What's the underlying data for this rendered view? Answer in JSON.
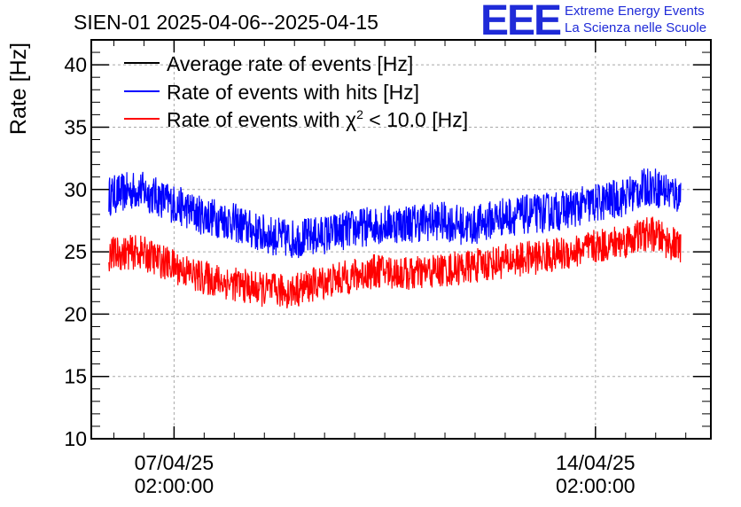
{
  "chart_data": {
    "type": "line",
    "title": "SIEN-01 2025-04-06--2025-04-15",
    "ylabel": "Rate [Hz]",
    "xlabel": "",
    "ylim": [
      10,
      42
    ],
    "yticks": [
      10,
      15,
      20,
      25,
      30,
      35,
      40
    ],
    "xlim": [
      "2025-04-05 17:00",
      "2025-04-16 00:00"
    ],
    "xticks": [
      {
        "date": "2025-04-07 02:00",
        "label_line1": "07/04/25",
        "label_line2": "02:00:00"
      },
      {
        "date": "2025-04-14 02:00",
        "label_line1": "14/04/25",
        "label_line2": "02:00:00"
      }
    ],
    "grid": true,
    "legend_placement": "top-left",
    "legend": [
      {
        "label": "Average rate of events [Hz]",
        "color": "#000000"
      },
      {
        "label": "Rate of events with hits [Hz]",
        "color": "#0000ff"
      },
      {
        "label_prefix": "Rate of events with ",
        "label_symbol": "χ",
        "label_sup": "2",
        "label_suffix": " < 10.0 [Hz]",
        "color": "#ff0000"
      }
    ],
    "series": [
      {
        "name": "Rate of events with hits [Hz]",
        "color": "#0000ff",
        "band": 1.6,
        "x": [
          "2025-04-06 00:00",
          "2025-04-06 12:00",
          "2025-04-07 00:00",
          "2025-04-07 12:00",
          "2025-04-08 00:00",
          "2025-04-08 12:00",
          "2025-04-09 00:00",
          "2025-04-09 12:00",
          "2025-04-10 00:00",
          "2025-04-10 12:00",
          "2025-04-11 00:00",
          "2025-04-11 12:00",
          "2025-04-12 00:00",
          "2025-04-12 12:00",
          "2025-04-13 00:00",
          "2025-04-13 12:00",
          "2025-04-14 00:00",
          "2025-04-14 12:00",
          "2025-04-15 00:00",
          "2025-04-15 12:00"
        ],
        "y": [
          29.5,
          30.0,
          29.0,
          28.0,
          27.5,
          26.5,
          26.0,
          26.3,
          26.8,
          27.2,
          27.3,
          27.5,
          27.0,
          27.8,
          28.0,
          28.3,
          28.8,
          29.3,
          30.3,
          29.5
        ]
      },
      {
        "name": "Rate of events with χ2 < 10.0 [Hz]",
        "color": "#ff0000",
        "band": 1.4,
        "x": [
          "2025-04-06 00:00",
          "2025-04-06 12:00",
          "2025-04-07 00:00",
          "2025-04-07 12:00",
          "2025-04-08 00:00",
          "2025-04-08 12:00",
          "2025-04-09 00:00",
          "2025-04-09 12:00",
          "2025-04-10 00:00",
          "2025-04-10 12:00",
          "2025-04-11 00:00",
          "2025-04-11 12:00",
          "2025-04-12 00:00",
          "2025-04-12 12:00",
          "2025-04-13 00:00",
          "2025-04-13 12:00",
          "2025-04-14 00:00",
          "2025-04-14 12:00",
          "2025-04-15 00:00",
          "2025-04-15 12:00"
        ],
        "y": [
          24.8,
          25.0,
          24.0,
          23.0,
          22.5,
          22.0,
          21.8,
          22.5,
          23.0,
          23.5,
          23.2,
          23.5,
          23.8,
          24.2,
          24.5,
          24.8,
          25.3,
          25.8,
          26.5,
          25.3
        ]
      }
    ]
  },
  "logo": {
    "mark": "EEE",
    "line1": "Extreme Energy Events",
    "line2": "La Scienza nelle Scuole"
  }
}
